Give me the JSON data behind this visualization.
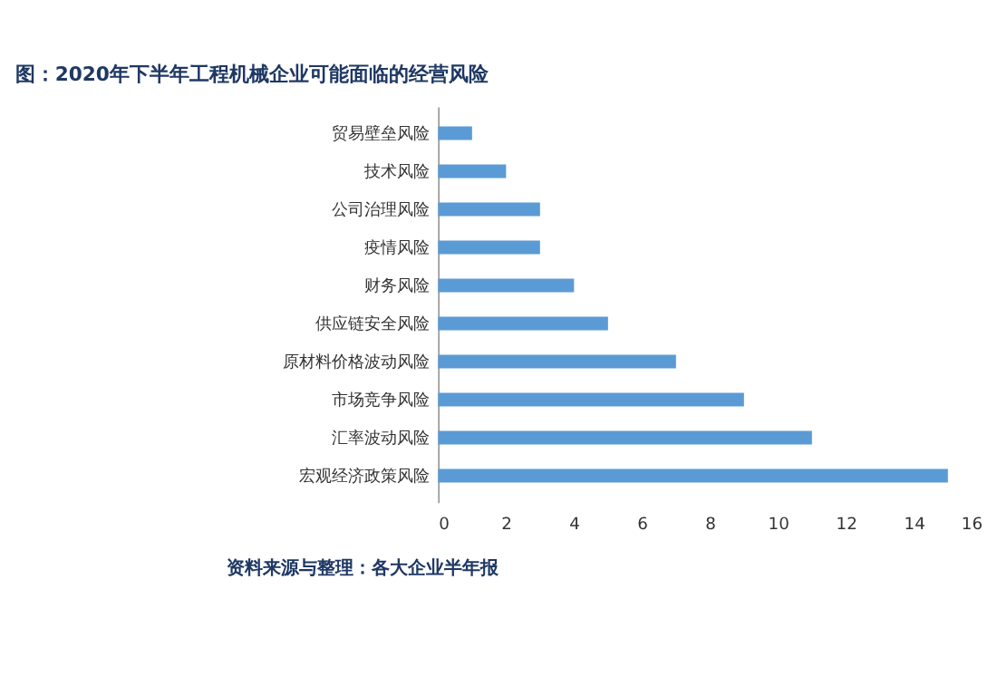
{
  "chart_data": {
    "type": "bar",
    "orientation": "horizontal",
    "title": "图：2020年下半年工程机械企业可能面临的经营风险",
    "categories": [
      "贸易壁垒风险",
      "技术风险",
      "公司治理风险",
      "疫情风险",
      "财务风险",
      "供应链安全风险",
      "原材料价格波动风险",
      "市场竞争风险",
      "汇率波动风险",
      "宏观经济政策风险"
    ],
    "values": [
      1,
      2,
      3,
      3,
      4,
      5,
      7,
      9,
      11,
      15
    ],
    "color": "#5b9bd5",
    "xlim": [
      0,
      16
    ],
    "xticks": [
      0,
      2,
      4,
      6,
      8,
      10,
      12,
      14,
      16
    ],
    "grid": false,
    "annotations": [
      "资料来源与整理：各大企业半年报"
    ]
  }
}
